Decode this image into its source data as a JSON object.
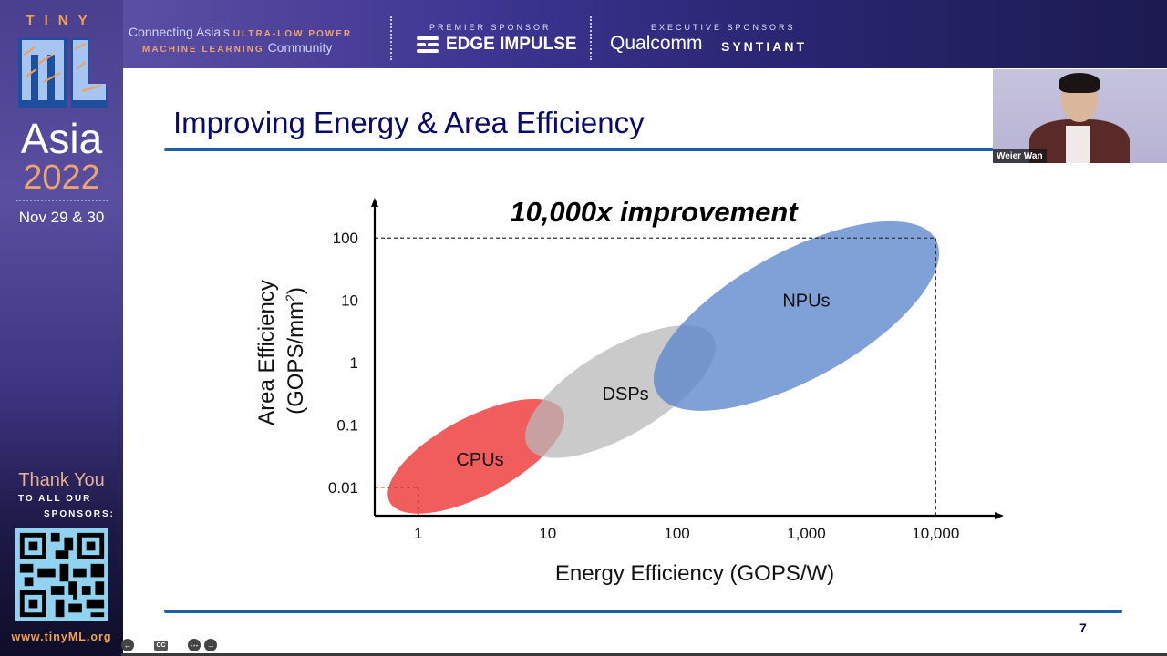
{
  "sidebar": {
    "tiny": "TINY",
    "ml": "ML",
    "asia": "Asia",
    "year": "2022",
    "dates": "Nov 29 & 30",
    "thank_you": "Thank You",
    "to_all_our": "TO ALL OUR",
    "sponsors": "SPONSORS:",
    "url": "www.tinyML.org",
    "colors": {
      "accent_orange": "#f0a050",
      "qr_bg": "#8fd3f0"
    }
  },
  "banner": {
    "tagline_part1": "Connecting Asia's",
    "tagline_accent1": "ULTRA-LOW POWER",
    "tagline_accent2": "MACHINE LEARNING",
    "tagline_part2": "Community",
    "premier_label": "PREMIER SPONSOR",
    "premier_name": "EDGE IMPULSE",
    "executive_label": "EXECUTIVE SPONSORS",
    "executive_sponsors": [
      "Qualcomm",
      "SYNTIANT"
    ]
  },
  "slide": {
    "title": "Improving Energy & Area Efficiency",
    "page_number": "7",
    "colors": {
      "title": "#0a0a6e",
      "rule": "#1f5fa5"
    }
  },
  "webcam": {
    "speaker_name": "Weier Wan"
  },
  "controls": {
    "icons": [
      "prev-icon",
      "pen-icon",
      "captions-icon",
      "video-off-icon",
      "more-icon",
      "next-icon"
    ],
    "captions_label": "CC"
  },
  "chart_data": {
    "type": "scatter",
    "title": "10,000x improvement",
    "xlabel": "Energy Efficiency (GOPS/W)",
    "ylabel_line1": "Area Efficiency",
    "ylabel_line2": "(GOPS/mm",
    "ylabel_sup": "2",
    "ylabel_close": ")",
    "x_scale": "log",
    "y_scale": "log",
    "x_ticks": [
      {
        "value": 1,
        "label": "1"
      },
      {
        "value": 10,
        "label": "10"
      },
      {
        "value": 100,
        "label": "100"
      },
      {
        "value": 1000,
        "label": "1,000"
      },
      {
        "value": 10000,
        "label": "10,000"
      }
    ],
    "y_ticks": [
      {
        "value": 0.01,
        "label": "0.01"
      },
      {
        "value": 0.1,
        "label": "0.1"
      },
      {
        "value": 1,
        "label": "1"
      },
      {
        "value": 10,
        "label": "10"
      },
      {
        "value": 100,
        "label": "100"
      }
    ],
    "xlim": [
      0.46,
      30000
    ],
    "ylim": [
      0.0035,
      350
    ],
    "grid": false,
    "reference_boxes": [
      {
        "name": "baseline",
        "x": 1,
        "y": 0.01,
        "color": "#c0392b"
      },
      {
        "name": "target",
        "x": 10000,
        "y": 100,
        "color": "#333333"
      }
    ],
    "regions": [
      {
        "name": "CPUs",
        "x_range": [
          0.6,
          13
        ],
        "y_range": [
          0.0058,
          0.17
        ],
        "label_at": [
          3,
          0.028
        ],
        "color": "#ee4040",
        "opacity": 0.85
      },
      {
        "name": "DSPs",
        "x_range": [
          7,
          190
        ],
        "y_range": [
          0.045,
          2.6
        ],
        "label_at": [
          40,
          0.32
        ],
        "color": "#b8b8b8",
        "opacity": 0.75
      },
      {
        "name": "NPUs",
        "x_range": [
          70,
          10000
        ],
        "y_range": [
          0.33,
          95
        ],
        "label_at": [
          1000,
          10
        ],
        "color": "#5b87cc",
        "opacity": 0.78
      }
    ]
  }
}
